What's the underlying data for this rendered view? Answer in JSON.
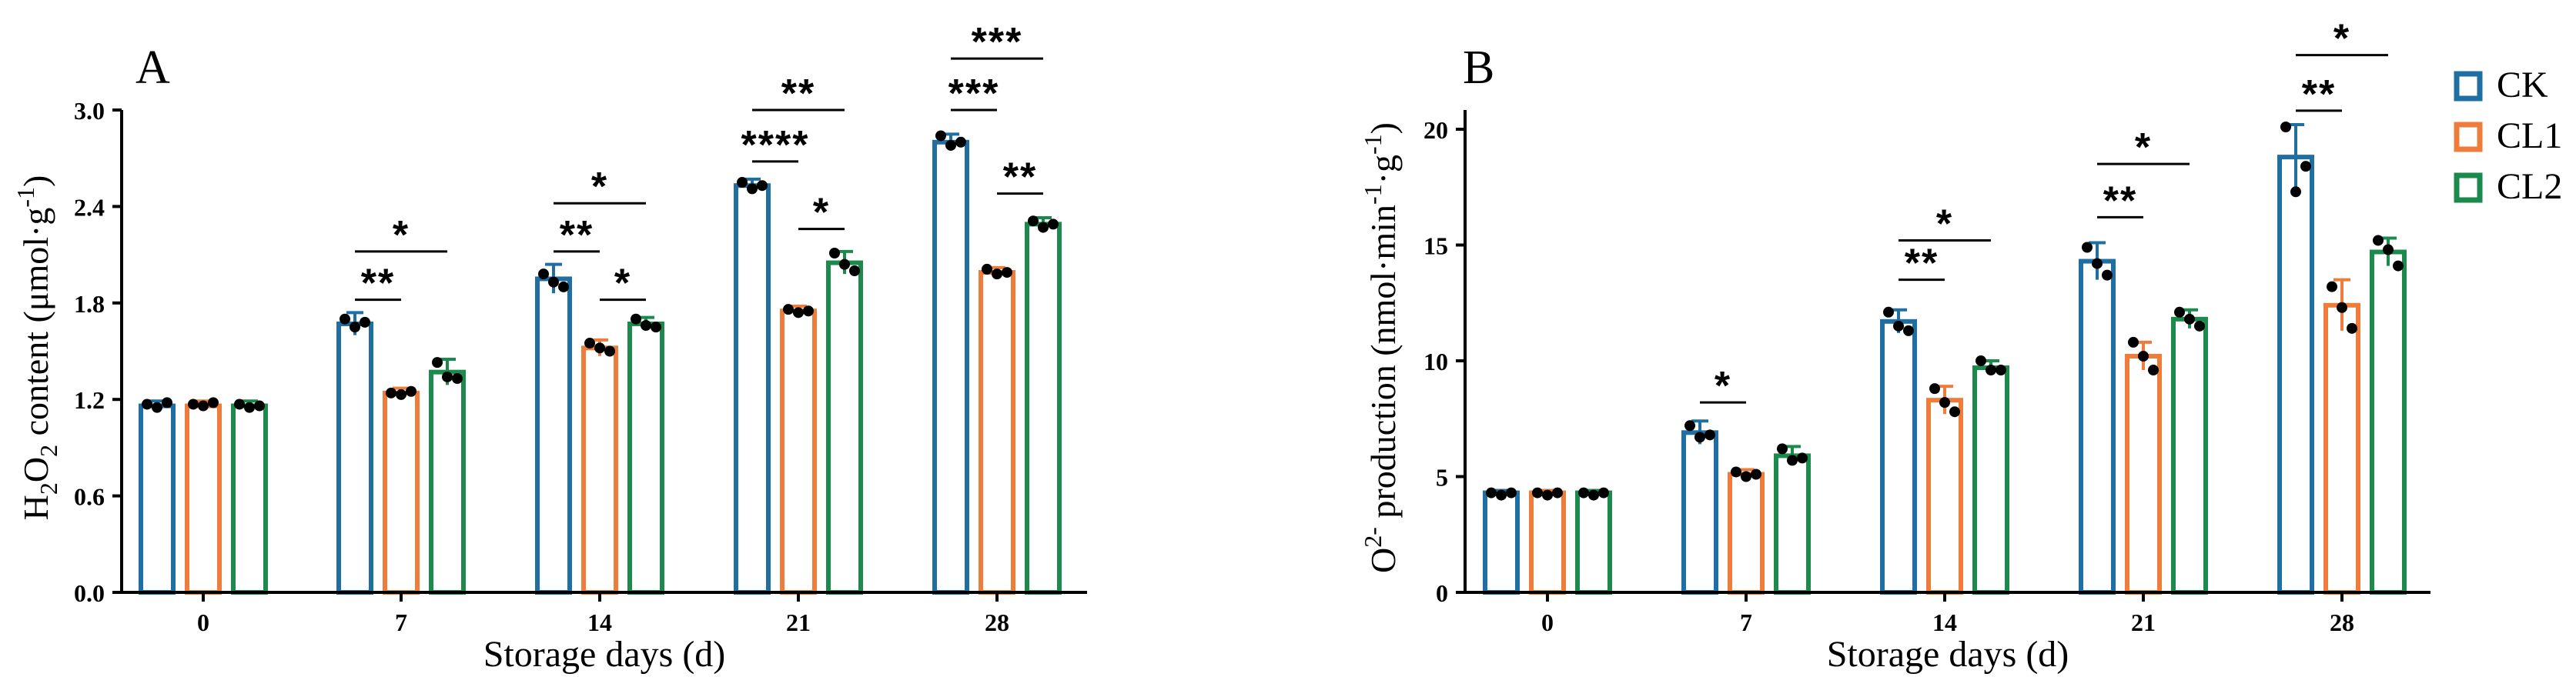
{
  "colors": {
    "CK": "#1f6fa3",
    "CL1": "#ee7d3b",
    "CL2": "#1b8a4c",
    "axis": "#000000",
    "dot": "#000000"
  },
  "legend": {
    "items": [
      {
        "name": "CK",
        "color": "#1f6fa3"
      },
      {
        "name": "CL1",
        "color": "#ee7d3b"
      },
      {
        "name": "CL2",
        "color": "#1b8a4c"
      }
    ]
  },
  "chart_data": [
    {
      "panel": "A",
      "type": "bar",
      "xlabel": "Storage days (d)",
      "ylabel": "H2O2 content (μmol·g-1)",
      "ylim": [
        0,
        3.0
      ],
      "yticks": [
        "0.0",
        "0.6",
        "1.2",
        "1.8",
        "2.4",
        "3.0"
      ],
      "categories": [
        "0",
        "7",
        "14",
        "21",
        "28"
      ],
      "series": [
        {
          "name": "CK",
          "values": [
            1.16,
            1.67,
            1.95,
            2.53,
            2.8
          ],
          "errors": [
            0.03,
            0.07,
            0.09,
            0.04,
            0.05
          ],
          "points": [
            [
              1.17,
              1.15,
              1.18
            ],
            [
              1.7,
              1.65,
              1.68
            ],
            [
              1.98,
              1.93,
              1.9
            ],
            [
              2.55,
              2.51,
              2.53
            ],
            [
              2.84,
              2.78,
              2.8
            ]
          ]
        },
        {
          "name": "CL1",
          "values": [
            1.16,
            1.24,
            1.52,
            1.75,
            1.99
          ],
          "errors": [
            0.03,
            0.03,
            0.05,
            0.03,
            0.03
          ],
          "points": [
            [
              1.17,
              1.16,
              1.18
            ],
            [
              1.24,
              1.23,
              1.25
            ],
            [
              1.55,
              1.52,
              1.5
            ],
            [
              1.76,
              1.74,
              1.75
            ],
            [
              2.01,
              1.98,
              1.99
            ]
          ]
        },
        {
          "name": "CL2",
          "values": [
            1.16,
            1.37,
            1.67,
            2.05,
            2.29
          ],
          "errors": [
            0.03,
            0.08,
            0.04,
            0.07,
            0.04
          ],
          "points": [
            [
              1.17,
              1.15,
              1.16
            ],
            [
              1.43,
              1.34,
              1.33
            ],
            [
              1.7,
              1.66,
              1.65
            ],
            [
              2.11,
              2.04,
              2.0
            ],
            [
              2.31,
              2.27,
              2.29
            ]
          ]
        }
      ],
      "significance": [
        {
          "category": "7",
          "from": "CK",
          "to": "CL1",
          "label": "**",
          "y": 1.82
        },
        {
          "category": "7",
          "from": "CK",
          "to": "CL2",
          "label": "*",
          "y": 2.12
        },
        {
          "category": "14",
          "from": "CK",
          "to": "CL1",
          "label": "**",
          "y": 2.12
        },
        {
          "category": "14",
          "from": "CK",
          "to": "CL2",
          "label": "*",
          "y": 2.42
        },
        {
          "category": "14",
          "from": "CL1",
          "to": "CL2",
          "label": "*",
          "y": 1.82
        },
        {
          "category": "21",
          "from": "CK",
          "to": "CL1",
          "label": "****",
          "y": 2.68
        },
        {
          "category": "21",
          "from": "CK",
          "to": "CL2",
          "label": "**",
          "y": 3.0
        },
        {
          "category": "21",
          "from": "CL1",
          "to": "CL2",
          "label": "*",
          "y": 2.26
        },
        {
          "category": "28",
          "from": "CK",
          "to": "CL1",
          "label": "***",
          "y": 3.0
        },
        {
          "category": "28",
          "from": "CK",
          "to": "CL2",
          "label": "***",
          "y": 3.32
        },
        {
          "category": "28",
          "from": "CL1",
          "to": "CL2",
          "label": "**",
          "y": 2.48
        }
      ]
    },
    {
      "panel": "B",
      "type": "bar",
      "xlabel": "Storage days (d)",
      "ylabel": "O2- production (nmol·min-1·g-1)",
      "ylim": [
        0,
        20
      ],
      "yticks": [
        "0",
        "5",
        "10",
        "15",
        "20"
      ],
      "categories": [
        "0",
        "7",
        "14",
        "21",
        "28"
      ],
      "series": [
        {
          "name": "CK",
          "values": [
            4.3,
            6.9,
            11.7,
            14.3,
            18.8
          ],
          "errors": [
            0.1,
            0.5,
            0.5,
            0.8,
            1.4
          ],
          "points": [
            [
              4.3,
              4.2,
              4.3
            ],
            [
              7.2,
              6.7,
              6.8
            ],
            [
              12.1,
              11.5,
              11.3
            ],
            [
              14.9,
              14.2,
              13.7
            ],
            [
              20.1,
              17.3,
              18.4
            ]
          ]
        },
        {
          "name": "CL1",
          "values": [
            4.3,
            5.1,
            8.3,
            10.2,
            12.4
          ],
          "errors": [
            0.1,
            0.2,
            0.6,
            0.6,
            1.1
          ],
          "points": [
            [
              4.3,
              4.2,
              4.3
            ],
            [
              5.2,
              5.0,
              5.1
            ],
            [
              8.8,
              8.2,
              7.8
            ],
            [
              10.8,
              10.2,
              9.6
            ],
            [
              13.2,
              12.3,
              11.4
            ]
          ]
        },
        {
          "name": "CL2",
          "values": [
            4.3,
            5.9,
            9.7,
            11.8,
            14.7
          ],
          "errors": [
            0.1,
            0.4,
            0.3,
            0.4,
            0.6
          ],
          "points": [
            [
              4.3,
              4.2,
              4.3
            ],
            [
              6.2,
              5.7,
              5.8
            ],
            [
              10.0,
              9.6,
              9.6
            ],
            [
              12.1,
              11.8,
              11.5
            ],
            [
              15.2,
              14.8,
              14.1
            ]
          ]
        }
      ],
      "significance": [
        {
          "category": "7",
          "from": "CK",
          "to": "CL1",
          "label": "*",
          "y": 8.2
        },
        {
          "category": "14",
          "from": "CK",
          "to": "CL1",
          "label": "**",
          "y": 13.5
        },
        {
          "category": "14",
          "from": "CK",
          "to": "CL2",
          "label": "*",
          "y": 15.2
        },
        {
          "category": "21",
          "from": "CK",
          "to": "CL1",
          "label": "**",
          "y": 16.2
        },
        {
          "category": "21",
          "from": "CK",
          "to": "CL2",
          "label": "*",
          "y": 18.5
        },
        {
          "category": "28",
          "from": "CK",
          "to": "CL1",
          "label": "**",
          "y": 20.8
        },
        {
          "category": "28",
          "from": "CK",
          "to": "CL2",
          "label": "*",
          "y": 23.2
        }
      ]
    }
  ]
}
